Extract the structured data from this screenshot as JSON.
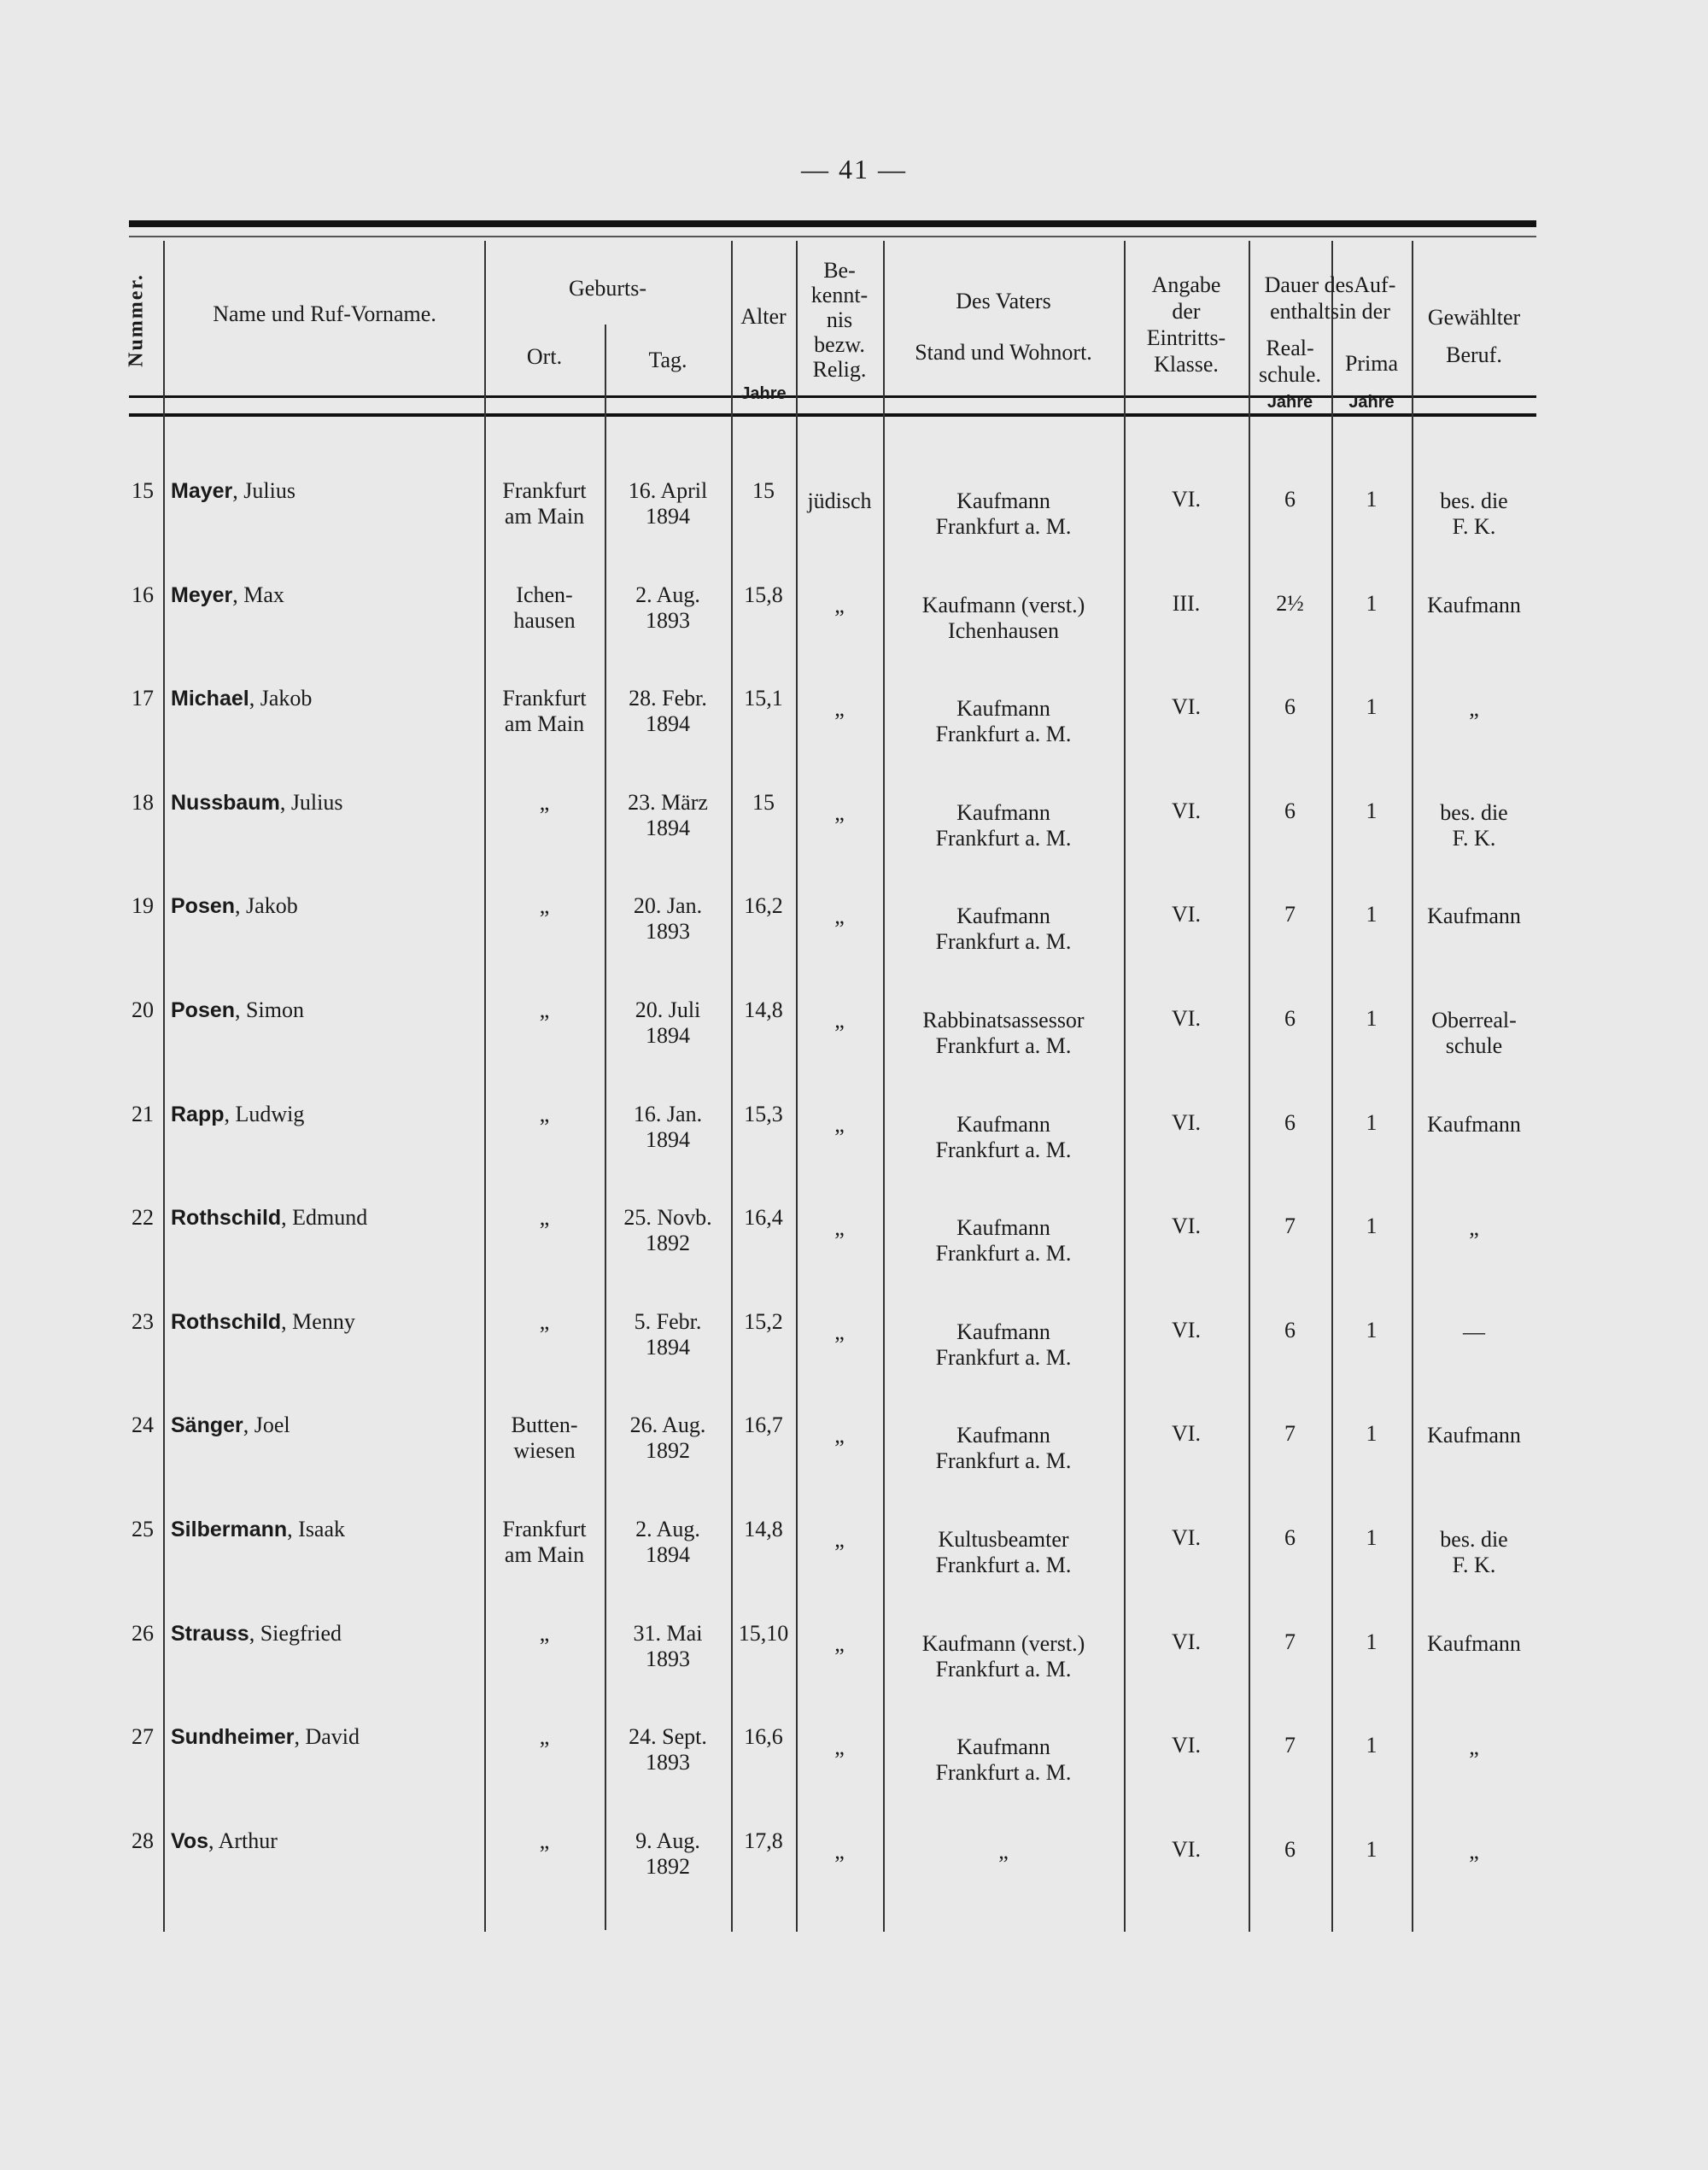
{
  "page_number": "— 41 —",
  "header": {
    "nummer": "Nummer.",
    "name": "Name und Ruf-Vorname.",
    "geburts": "Geburts-",
    "ort": "Ort.",
    "tag": "Tag.",
    "alter": "Alter",
    "alter_unit": "Jahre",
    "bekenntnis": [
      "Be-",
      "kennt-",
      "nis",
      "bezw.",
      "Relig."
    ],
    "vater_title": "Des Vaters",
    "vater_sub": "Stand und Wohnort.",
    "eintritt": [
      "Angabe",
      "der",
      "Eintritts-",
      "Klasse."
    ],
    "dauer": [
      "Dauer desAuf-",
      "enthaltsin der"
    ],
    "realschule": [
      "Real-",
      "schule."
    ],
    "realschule_unit": "Jahre",
    "prima": "Prima",
    "prima_unit": "Jahre",
    "beruf": [
      "Gewählter",
      "Beruf."
    ]
  },
  "rows": [
    {
      "nr": "15",
      "surname": "Mayer",
      "first": ", Julius",
      "ort": [
        "Frankfurt",
        "am Main"
      ],
      "tag": [
        "16. April",
        "1894"
      ],
      "alter": "15",
      "relig": "jüdisch",
      "vater": [
        "Kaufmann",
        "Frankfurt a. M."
      ],
      "klasse": "VI.",
      "real": "6",
      "prima": "1",
      "beruf": [
        "bes. die",
        "F. K."
      ]
    },
    {
      "nr": "16",
      "surname": "Meyer",
      "first": ", Max",
      "ort": [
        "Ichen-",
        "hausen"
      ],
      "tag": [
        "2. Aug.",
        "1893"
      ],
      "alter": "15,8",
      "relig": "„",
      "vater": [
        "Kaufmann (verst.)",
        "Ichenhausen"
      ],
      "klasse": "III.",
      "real": "2½",
      "prima": "1",
      "beruf": [
        "Kaufmann"
      ]
    },
    {
      "nr": "17",
      "surname": "Michael",
      "first": ", Jakob",
      "ort": [
        "Frankfurt",
        "am Main"
      ],
      "tag": [
        "28. Febr.",
        "1894"
      ],
      "alter": "15,1",
      "relig": "„",
      "vater": [
        "Kaufmann",
        "Frankfurt a. M."
      ],
      "klasse": "VI.",
      "real": "6",
      "prima": "1",
      "beruf": [
        "„"
      ]
    },
    {
      "nr": "18",
      "surname": "Nussbaum",
      "first": ", Julius",
      "ort": [
        "„"
      ],
      "tag": [
        "23. März",
        "1894"
      ],
      "alter": "15",
      "relig": "„",
      "vater": [
        "Kaufmann",
        "Frankfurt a. M."
      ],
      "klasse": "VI.",
      "real": "6",
      "prima": "1",
      "beruf": [
        "bes. die",
        "F. K."
      ]
    },
    {
      "nr": "19",
      "surname": "Posen",
      "first": ", Jakob",
      "ort": [
        "„"
      ],
      "tag": [
        "20. Jan.",
        "1893"
      ],
      "alter": "16,2",
      "relig": "„",
      "vater": [
        "Kaufmann",
        "Frankfurt a. M."
      ],
      "klasse": "VI.",
      "real": "7",
      "prima": "1",
      "beruf": [
        "Kaufmann"
      ]
    },
    {
      "nr": "20",
      "surname": "Posen",
      "first": ", Simon",
      "ort": [
        "„"
      ],
      "tag": [
        "20. Juli",
        "1894"
      ],
      "alter": "14,8",
      "relig": "„",
      "vater": [
        "Rabbinatsassessor",
        "Frankfurt a. M."
      ],
      "klasse": "VI.",
      "real": "6",
      "prima": "1",
      "beruf": [
        "Oberreal-",
        "schule"
      ]
    },
    {
      "nr": "21",
      "surname": "Rapp",
      "first": ", Ludwig",
      "ort": [
        "„"
      ],
      "tag": [
        "16. Jan.",
        "1894"
      ],
      "alter": "15,3",
      "relig": "„",
      "vater": [
        "Kaufmann",
        "Frankfurt a. M."
      ],
      "klasse": "VI.",
      "real": "6",
      "prima": "1",
      "beruf": [
        "Kaufmann"
      ]
    },
    {
      "nr": "22",
      "surname": "Rothschild",
      "first": ", Edmund",
      "ort": [
        "„"
      ],
      "tag": [
        "25. Novb.",
        "1892"
      ],
      "alter": "16,4",
      "relig": "„",
      "vater": [
        "Kaufmann",
        "Frankfurt a. M."
      ],
      "klasse": "VI.",
      "real": "7",
      "prima": "1",
      "beruf": [
        "„"
      ]
    },
    {
      "nr": "23",
      "surname": "Rothschild",
      "first": ", Menny",
      "ort": [
        "„"
      ],
      "tag": [
        "5. Febr.",
        "1894"
      ],
      "alter": "15,2",
      "relig": "„",
      "vater": [
        "Kaufmann",
        "Frankfurt a. M."
      ],
      "klasse": "VI.",
      "real": "6",
      "prima": "1",
      "beruf": [
        "—"
      ]
    },
    {
      "nr": "24",
      "surname": "Sänger",
      "first": ", Joel",
      "ort": [
        "Butten-",
        "wiesen"
      ],
      "tag": [
        "26. Aug.",
        "1892"
      ],
      "alter": "16,7",
      "relig": "„",
      "vater": [
        "Kaufmann",
        "Frankfurt a. M."
      ],
      "klasse": "VI.",
      "real": "7",
      "prima": "1",
      "beruf": [
        "Kaufmann"
      ]
    },
    {
      "nr": "25",
      "surname": "Silbermann",
      "first": ", Isaak",
      "ort": [
        "Frankfurt",
        "am Main"
      ],
      "tag": [
        "2. Aug.",
        "1894"
      ],
      "alter": "14,8",
      "relig": "„",
      "vater": [
        "Kultusbeamter",
        "Frankfurt a. M."
      ],
      "klasse": "VI.",
      "real": "6",
      "prima": "1",
      "beruf": [
        "bes. die",
        "F. K."
      ]
    },
    {
      "nr": "26",
      "surname": "Strauss",
      "first": ", Siegfried",
      "ort": [
        "„"
      ],
      "tag": [
        "31. Mai",
        "1893"
      ],
      "alter": "15,10",
      "relig": "„",
      "vater": [
        "Kaufmann (verst.)",
        "Frankfurt a. M."
      ],
      "klasse": "VI.",
      "real": "7",
      "prima": "1",
      "beruf": [
        "Kaufmann"
      ]
    },
    {
      "nr": "27",
      "surname": "Sundheimer",
      "first": ", David",
      "ort": [
        "„"
      ],
      "tag": [
        "24. Sept.",
        "1893"
      ],
      "alter": "16,6",
      "relig": "„",
      "vater": [
        "Kaufmann",
        "Frankfurt a. M."
      ],
      "klasse": "VI.",
      "real": "7",
      "prima": "1",
      "beruf": [
        "„"
      ]
    },
    {
      "nr": "28",
      "surname": "Vos",
      "first": ", Arthur",
      "ort": [
        "„"
      ],
      "tag": [
        "9. Aug.",
        "1892"
      ],
      "alter": "17,8",
      "relig": "„",
      "vater": [
        "„"
      ],
      "klasse": "VI.",
      "real": "6",
      "prima": "1",
      "beruf": [
        "„"
      ]
    }
  ]
}
